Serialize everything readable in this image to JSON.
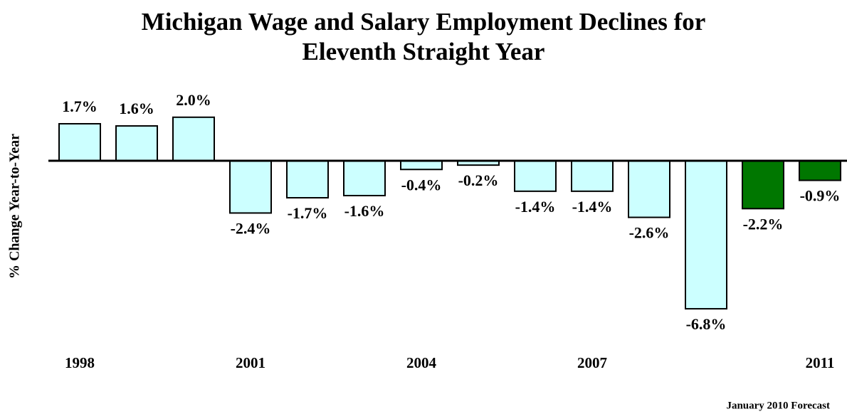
{
  "chart_data": {
    "type": "bar",
    "title": "Michigan Wage and Salary Employment Declines for Eleventh Straight Year",
    "y_axis_label": "% Change Year-to-Year",
    "note": "January 2010 Forecast",
    "categories": [
      "1998",
      null,
      null,
      "2001",
      null,
      null,
      "2004",
      null,
      null,
      "2007",
      null,
      null,
      null,
      "2011"
    ],
    "values": [
      1.7,
      1.6,
      2.0,
      -2.4,
      -1.7,
      -1.6,
      -0.4,
      -0.2,
      -1.4,
      -1.4,
      -2.6,
      -6.8,
      -2.2,
      -0.9
    ],
    "value_labels": [
      "1.7%",
      "1.6%",
      "2.0%",
      "-2.4%",
      "-1.7%",
      "-1.6%",
      "-0.4%",
      "-0.2%",
      "-1.4%",
      "-1.4%",
      "-2.6%",
      "-6.8%",
      "-2.2%",
      "-0.9%"
    ],
    "colors": [
      "#ccffff",
      "#ccffff",
      "#ccffff",
      "#ccffff",
      "#ccffff",
      "#ccffff",
      "#ccffff",
      "#ccffff",
      "#ccffff",
      "#ccffff",
      "#ccffff",
      "#ccffff",
      "#007700",
      "#007700"
    ],
    "ylim": [
      -7.5,
      2.5
    ]
  }
}
